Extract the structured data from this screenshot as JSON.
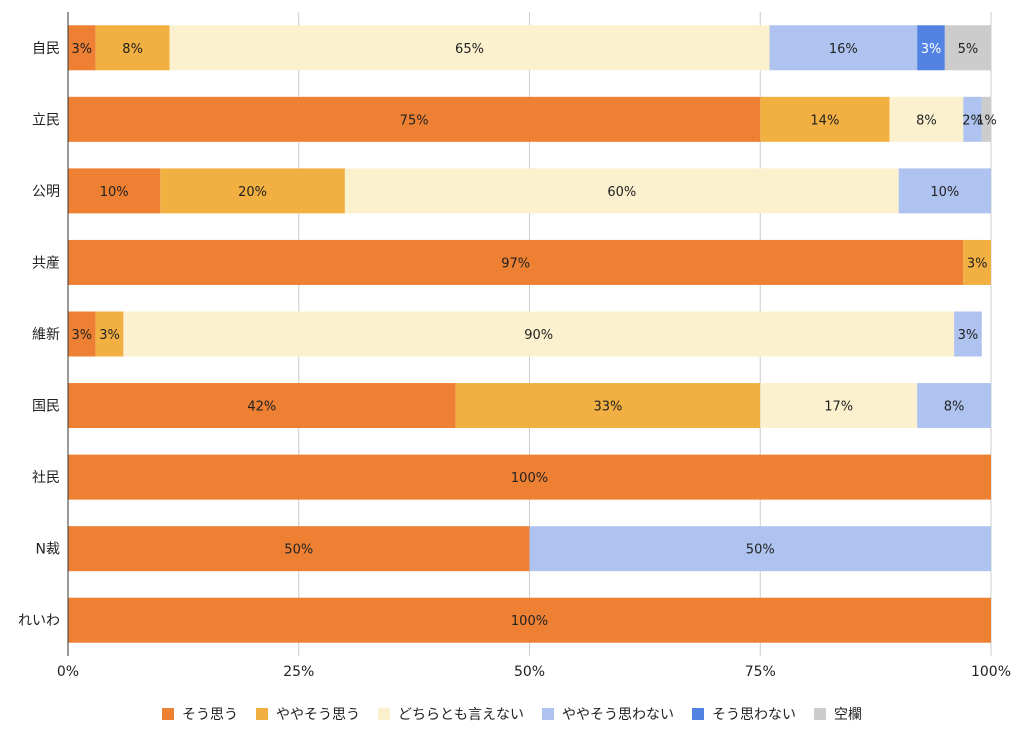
{
  "chart_data": {
    "type": "bar",
    "orientation": "horizontal",
    "stacked": true,
    "categories": [
      "自民",
      "立民",
      "公明",
      "共産",
      "維新",
      "国民",
      "社民",
      "N裁",
      "れいわ"
    ],
    "series": [
      {
        "name": "そう思う",
        "color": "#ED8032",
        "values": [
          3,
          75,
          10,
          97,
          3,
          42,
          100,
          50,
          100
        ],
        "labels": [
          "3%",
          "75%",
          "10%",
          "97%",
          "3%",
          "42%",
          "100%",
          "50%",
          "100%"
        ]
      },
      {
        "name": "ややそう思う",
        "color": "#F2B042",
        "values": [
          8,
          14,
          20,
          3,
          3,
          33,
          0,
          0,
          0
        ],
        "labels": [
          "8%",
          "14%",
          "20%",
          "3%",
          "3%",
          "33%",
          "",
          "",
          ""
        ]
      },
      {
        "name": "どちらとも言えない",
        "color": "#FCF1CF",
        "values": [
          65,
          8,
          60,
          0,
          90,
          17,
          0,
          0,
          0
        ],
        "labels": [
          "65%",
          "8%",
          "60%",
          "",
          "90%",
          "17%",
          "",
          "",
          ""
        ]
      },
      {
        "name": "ややそう思わない",
        "color": "#AEC3EF",
        "values": [
          16,
          2,
          10,
          0,
          3,
          8,
          0,
          50,
          0
        ],
        "labels": [
          "16%",
          "2%",
          "10%",
          "",
          "3%",
          "8%",
          "",
          "50%",
          ""
        ]
      },
      {
        "name": "そう思わない",
        "color": "#5383E2",
        "values": [
          3,
          0,
          0,
          0,
          0,
          0,
          0,
          0,
          0
        ],
        "labels": [
          "3%",
          "",
          "",
          "",
          "",
          "",
          "",
          "",
          ""
        ]
      },
      {
        "name": "空欄",
        "color": "#CCCCCC",
        "values": [
          5,
          1,
          0,
          0,
          0,
          0,
          0,
          0,
          0
        ],
        "labels": [
          "5%",
          "1%",
          "",
          "",
          "",
          "",
          "",
          "",
          ""
        ]
      }
    ],
    "xlim": [
      0,
      100
    ],
    "xticks": [
      "0%",
      "25%",
      "50%",
      "75%",
      "100%"
    ],
    "grid": true,
    "legend_position": "bottom"
  }
}
